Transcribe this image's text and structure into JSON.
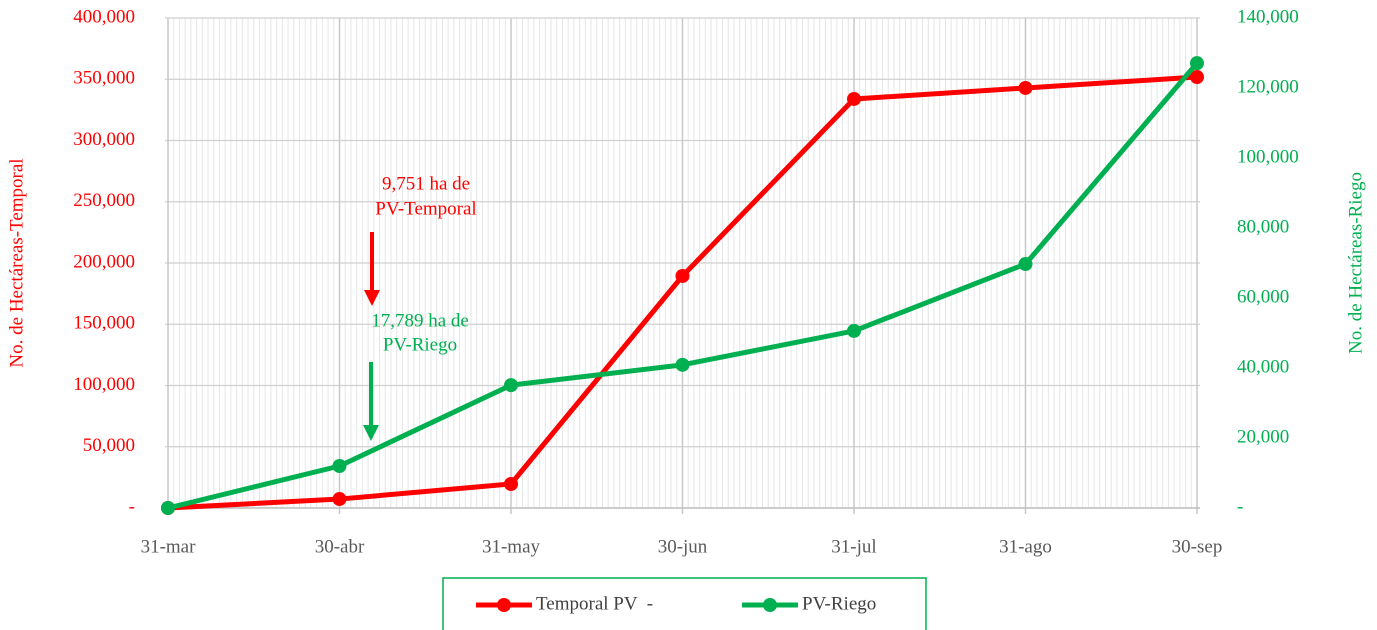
{
  "chart_data": {
    "type": "line",
    "categories": [
      "31-mar",
      "30-abr",
      "31-may",
      "30-jun",
      "31-jul",
      "31-ago",
      "30-sep"
    ],
    "series": [
      {
        "name": "Temporal PV  -",
        "color": "#ff0000",
        "values": [
          0,
          7300,
          19600,
          189400,
          333900,
          342900,
          351800
        ]
      },
      {
        "name": "PV-Riego",
        "color": "#00b050",
        "axis": "y2",
        "values": [
          0,
          12000,
          35100,
          40900,
          50600,
          69700,
          127100
        ]
      }
    ],
    "ylabel": "No. de Hectáreas-Temporal",
    "y2label": "No. de Hectáreas-Riego",
    "ylim": [
      0,
      400000
    ],
    "yticks": [
      {
        "value": 0,
        "label": "-"
      },
      {
        "value": 50000,
        "label": "50,000"
      },
      {
        "value": 100000,
        "label": "100,000"
      },
      {
        "value": 150000,
        "label": "150,000"
      },
      {
        "value": 200000,
        "label": "200,000"
      },
      {
        "value": 250000,
        "label": "250,000"
      },
      {
        "value": 300000,
        "label": "300,000"
      },
      {
        "value": 350000,
        "label": "350,000"
      },
      {
        "value": 400000,
        "label": "400,000"
      }
    ],
    "y2lim": [
      0,
      140000
    ],
    "y2ticks": [
      {
        "value": 0,
        "label": "-"
      },
      {
        "value": 20000,
        "label": "20,000"
      },
      {
        "value": 40000,
        "label": "40,000"
      },
      {
        "value": 60000,
        "label": "60,000"
      },
      {
        "value": 80000,
        "label": "80,000"
      },
      {
        "value": 100000,
        "label": "100,000"
      },
      {
        "value": 120000,
        "label": "120,000"
      },
      {
        "value": 140000,
        "label": "140,000"
      }
    ],
    "annotations": [
      {
        "lines": [
          "9,751  ha de",
          "PV-Temporal"
        ],
        "color": "#ff0000"
      },
      {
        "lines": [
          "17,789 ha de",
          "PV-Riego"
        ],
        "color": "#00b050"
      }
    ],
    "grid": true,
    "legend": "bottom"
  }
}
